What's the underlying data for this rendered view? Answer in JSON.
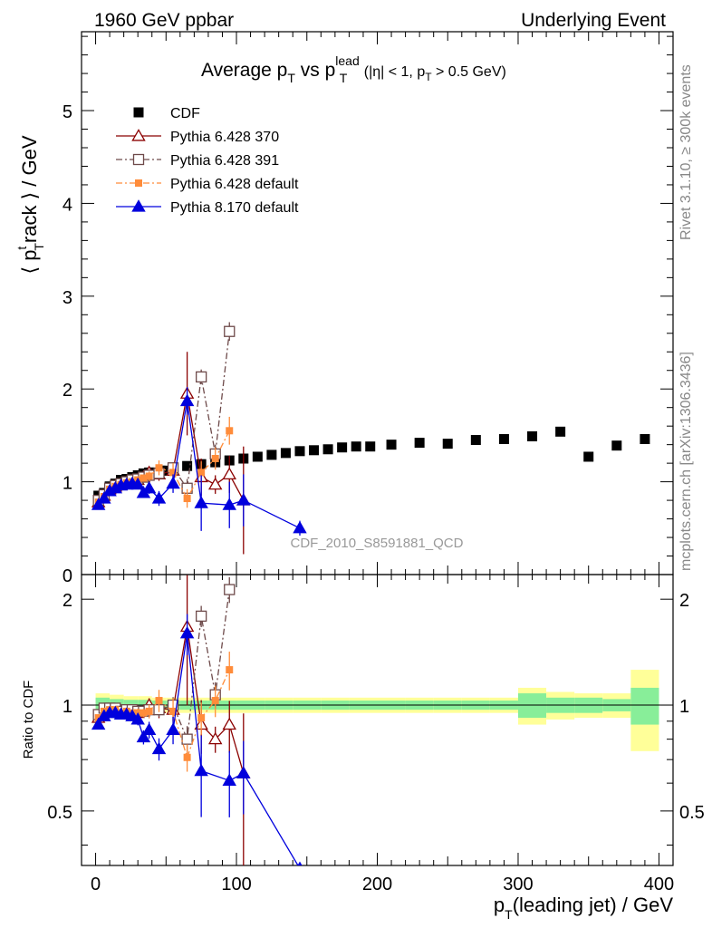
{
  "header": {
    "left": "1960 GeV ppbar",
    "right": "Underlying Event"
  },
  "side_labels": {
    "rivet": "Rivet 3.1.10, ≥ 300k events",
    "mcplots": "mcplots.cern.ch [arXiv:1306.3436]"
  },
  "watermark": "CDF_2010_S8591881_QCD",
  "title": {
    "main": "Average p",
    "sub1": "T",
    "vs": " vs p",
    "sup": "lead",
    "sub2": "T",
    "cond1": " (|η| < 1, p",
    "cond_sub": "T",
    "cond2": " > 0.5 GeV)"
  },
  "axes": {
    "ylabel_main": {
      "pre": "⟨ p",
      "sup": "t",
      "sub": "T",
      "post": "rack ⟩ / GeV"
    },
    "ylabel_ratio": "Ratio to CDF",
    "xlabel": {
      "pre": "p",
      "sub": "T",
      "post": "(leading jet) / GeV"
    },
    "x_ticks": [
      "0",
      "100",
      "200",
      "300",
      "400"
    ],
    "y_ticks_main": [
      "0",
      "1",
      "2",
      "3",
      "4",
      "5"
    ],
    "y_ticks_ratio": [
      "0.5",
      "1",
      "2"
    ]
  },
  "colors": {
    "cdf": "#000000",
    "p370": "#8b0000",
    "p391": "#6e4a4a",
    "p6def": "#ff8c3a",
    "p8def": "#0000dd",
    "band_inner": "#88ee99",
    "band_outer": "#ffff99"
  },
  "chart_data": {
    "type": "scatter",
    "xlim": [
      -10,
      410
    ],
    "ylim_main": [
      0,
      5.85
    ],
    "ylim_ratio": [
      0.35,
      2.35
    ],
    "ratio_scale": "log",
    "series": [
      {
        "name": "CDF",
        "key": "cdf",
        "marker": "square-filled",
        "x": [
          2,
          6,
          10,
          14,
          18,
          22,
          26,
          30,
          34,
          38,
          42,
          46,
          50,
          55,
          65,
          75,
          85,
          95,
          105,
          115,
          125,
          135,
          145,
          155,
          165,
          175,
          185,
          195,
          210,
          230,
          250,
          270,
          290,
          310,
          330,
          350,
          370,
          390
        ],
        "y": [
          0.85,
          0.88,
          0.95,
          0.98,
          1.02,
          1.03,
          1.05,
          1.07,
          1.09,
          1.1,
          1.1,
          1.12,
          1.12,
          1.15,
          1.17,
          1.19,
          1.21,
          1.23,
          1.25,
          1.27,
          1.29,
          1.31,
          1.33,
          1.34,
          1.35,
          1.37,
          1.38,
          1.38,
          1.4,
          1.42,
          1.41,
          1.45,
          1.46,
          1.49,
          1.54,
          1.27,
          1.39,
          1.46
        ]
      },
      {
        "name": "Pythia 6.428 370",
        "key": "p370",
        "marker": "triangle-open",
        "line": "solid",
        "x": [
          2,
          6,
          10,
          14,
          18,
          22,
          26,
          30,
          34,
          38,
          45,
          55,
          65,
          75,
          85,
          95,
          105
        ],
        "y": [
          0.78,
          0.85,
          0.92,
          0.95,
          0.97,
          0.99,
          1.01,
          1.02,
          1.05,
          1.1,
          1.08,
          1.12,
          1.95,
          1.05,
          0.97,
          1.08,
          0.8
        ],
        "err": [
          0.02,
          0.02,
          0.02,
          0.02,
          0.02,
          0.02,
          0.02,
          0.03,
          0.04,
          0.05,
          0.07,
          0.08,
          0.45,
          0.2,
          0.1,
          0.2,
          0.58
        ],
        "ratio": [
          0.92,
          0.97,
          0.97,
          0.97,
          0.95,
          0.96,
          0.96,
          0.95,
          0.96,
          1.0,
          0.98,
          0.97,
          1.67,
          0.88,
          0.8,
          0.88,
          0.64
        ]
      },
      {
        "name": "Pythia 6.428 391",
        "key": "p391",
        "marker": "square-open",
        "line": "dashdot",
        "x": [
          2,
          6,
          10,
          14,
          18,
          22,
          26,
          30,
          34,
          38,
          45,
          55,
          65,
          75,
          85,
          95
        ],
        "y": [
          0.8,
          0.86,
          0.93,
          0.96,
          0.98,
          1.0,
          1.02,
          1.03,
          1.05,
          1.07,
          1.09,
          1.15,
          0.93,
          2.13,
          1.3,
          2.62
        ],
        "err": [
          0.02,
          0.02,
          0.02,
          0.02,
          0.02,
          0.02,
          0.02,
          0.03,
          0.03,
          0.04,
          0.05,
          0.06,
          0.1,
          0.08,
          0.1,
          0.1
        ],
        "ratio": [
          0.94,
          0.98,
          0.98,
          0.98,
          0.96,
          0.97,
          0.97,
          0.96,
          0.96,
          0.97,
          0.97,
          1.0,
          0.8,
          1.79,
          1.07,
          2.13
        ]
      },
      {
        "name": "Pythia 6.428 default",
        "key": "p6def",
        "marker": "square-filled",
        "line": "dashdot",
        "x": [
          2,
          6,
          10,
          14,
          18,
          22,
          26,
          30,
          34,
          38,
          45,
          55,
          65,
          75,
          85,
          95
        ],
        "y": [
          0.78,
          0.84,
          0.92,
          0.95,
          0.97,
          0.99,
          1.0,
          1.02,
          1.04,
          1.06,
          1.15,
          1.1,
          0.82,
          1.1,
          1.25,
          1.55
        ],
        "err": [
          0.02,
          0.02,
          0.02,
          0.02,
          0.02,
          0.02,
          0.02,
          0.03,
          0.03,
          0.05,
          0.08,
          0.1,
          0.1,
          0.12,
          0.12,
          0.15
        ],
        "ratio": [
          0.92,
          0.96,
          0.97,
          0.97,
          0.95,
          0.96,
          0.95,
          0.95,
          0.95,
          0.96,
          1.03,
          0.96,
          0.71,
          0.92,
          1.03,
          1.26
        ]
      },
      {
        "name": "Pythia 8.170 default",
        "key": "p8def",
        "marker": "triangle-filled",
        "line": "solid",
        "x": [
          2,
          6,
          10,
          14,
          18,
          22,
          26,
          30,
          34,
          38,
          45,
          55,
          65,
          75,
          95,
          105,
          145
        ],
        "y": [
          0.75,
          0.82,
          0.9,
          0.93,
          0.96,
          0.97,
          0.98,
          0.97,
          0.88,
          0.93,
          0.82,
          0.98,
          1.87,
          0.77,
          0.75,
          0.8,
          0.5
        ],
        "err": [
          0.02,
          0.02,
          0.02,
          0.02,
          0.02,
          0.02,
          0.03,
          0.04,
          0.05,
          0.06,
          0.08,
          0.1,
          0.15,
          0.3,
          0.25,
          0.28,
          0.08
        ],
        "ratio": [
          0.88,
          0.93,
          0.95,
          0.95,
          0.94,
          0.94,
          0.93,
          0.91,
          0.81,
          0.85,
          0.75,
          0.85,
          1.6,
          0.65,
          0.61,
          0.64,
          0.3
        ]
      }
    ],
    "band": {
      "x_edges": [
        0,
        10,
        20,
        30,
        40,
        50,
        60,
        70,
        80,
        90,
        100,
        120,
        140,
        160,
        180,
        200,
        220,
        240,
        260,
        280,
        300,
        320,
        340,
        360,
        380,
        400
      ],
      "inner": [
        0.05,
        0.04,
        0.035,
        0.035,
        0.03,
        0.03,
        0.03,
        0.03,
        0.03,
        0.03,
        0.03,
        0.03,
        0.03,
        0.03,
        0.03,
        0.03,
        0.03,
        0.03,
        0.03,
        0.03,
        0.08,
        0.05,
        0.05,
        0.04,
        0.12
      ],
      "outer": [
        0.08,
        0.07,
        0.06,
        0.06,
        0.05,
        0.05,
        0.05,
        0.05,
        0.05,
        0.05,
        0.05,
        0.05,
        0.05,
        0.05,
        0.05,
        0.05,
        0.05,
        0.05,
        0.05,
        0.05,
        0.12,
        0.09,
        0.08,
        0.08,
        0.26
      ]
    },
    "legend_placement": "top-left",
    "grid": false
  }
}
